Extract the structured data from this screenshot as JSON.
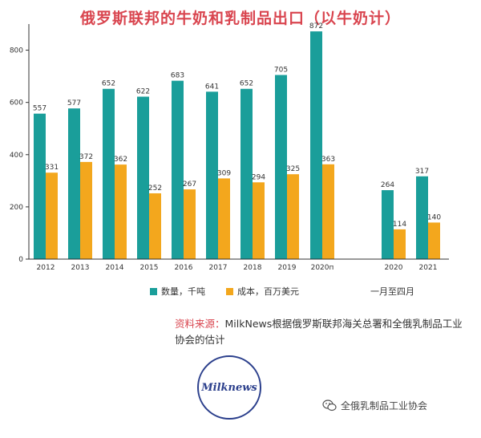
{
  "chart_data": {
    "type": "bar",
    "title": "俄罗斯联邦的牛奶和乳制品出口（以牛奶计）",
    "categories": [
      "2012",
      "2013",
      "2014",
      "2015",
      "2016",
      "2017",
      "2018",
      "2019",
      "2020п",
      "2020",
      "2021"
    ],
    "series": [
      {
        "name": "数量，千吨",
        "color": "#1a9e9a",
        "values": [
          557,
          577,
          652,
          622,
          683,
          641,
          652,
          705,
          872,
          264,
          317
        ]
      },
      {
        "name": "成本，百万美元",
        "color": "#f3a71d",
        "values": [
          331,
          372,
          362,
          252,
          267,
          309,
          294,
          325,
          363,
          114,
          140
        ]
      }
    ],
    "ylim": [
      0,
      900
    ],
    "yticks": [
      0,
      200,
      400,
      600,
      800
    ],
    "grid": false,
    "legend": "bottom",
    "group_note": "一月至四月"
  },
  "source": {
    "label": "资料来源：",
    "text": "MilkNews根据俄罗斯联邦海关总署和全俄乳制品工业协会的估计"
  },
  "logo": {
    "text": "Milknews"
  },
  "watermark": {
    "text": "全俄乳制品工业协会",
    "icon": "wechat-icon"
  }
}
